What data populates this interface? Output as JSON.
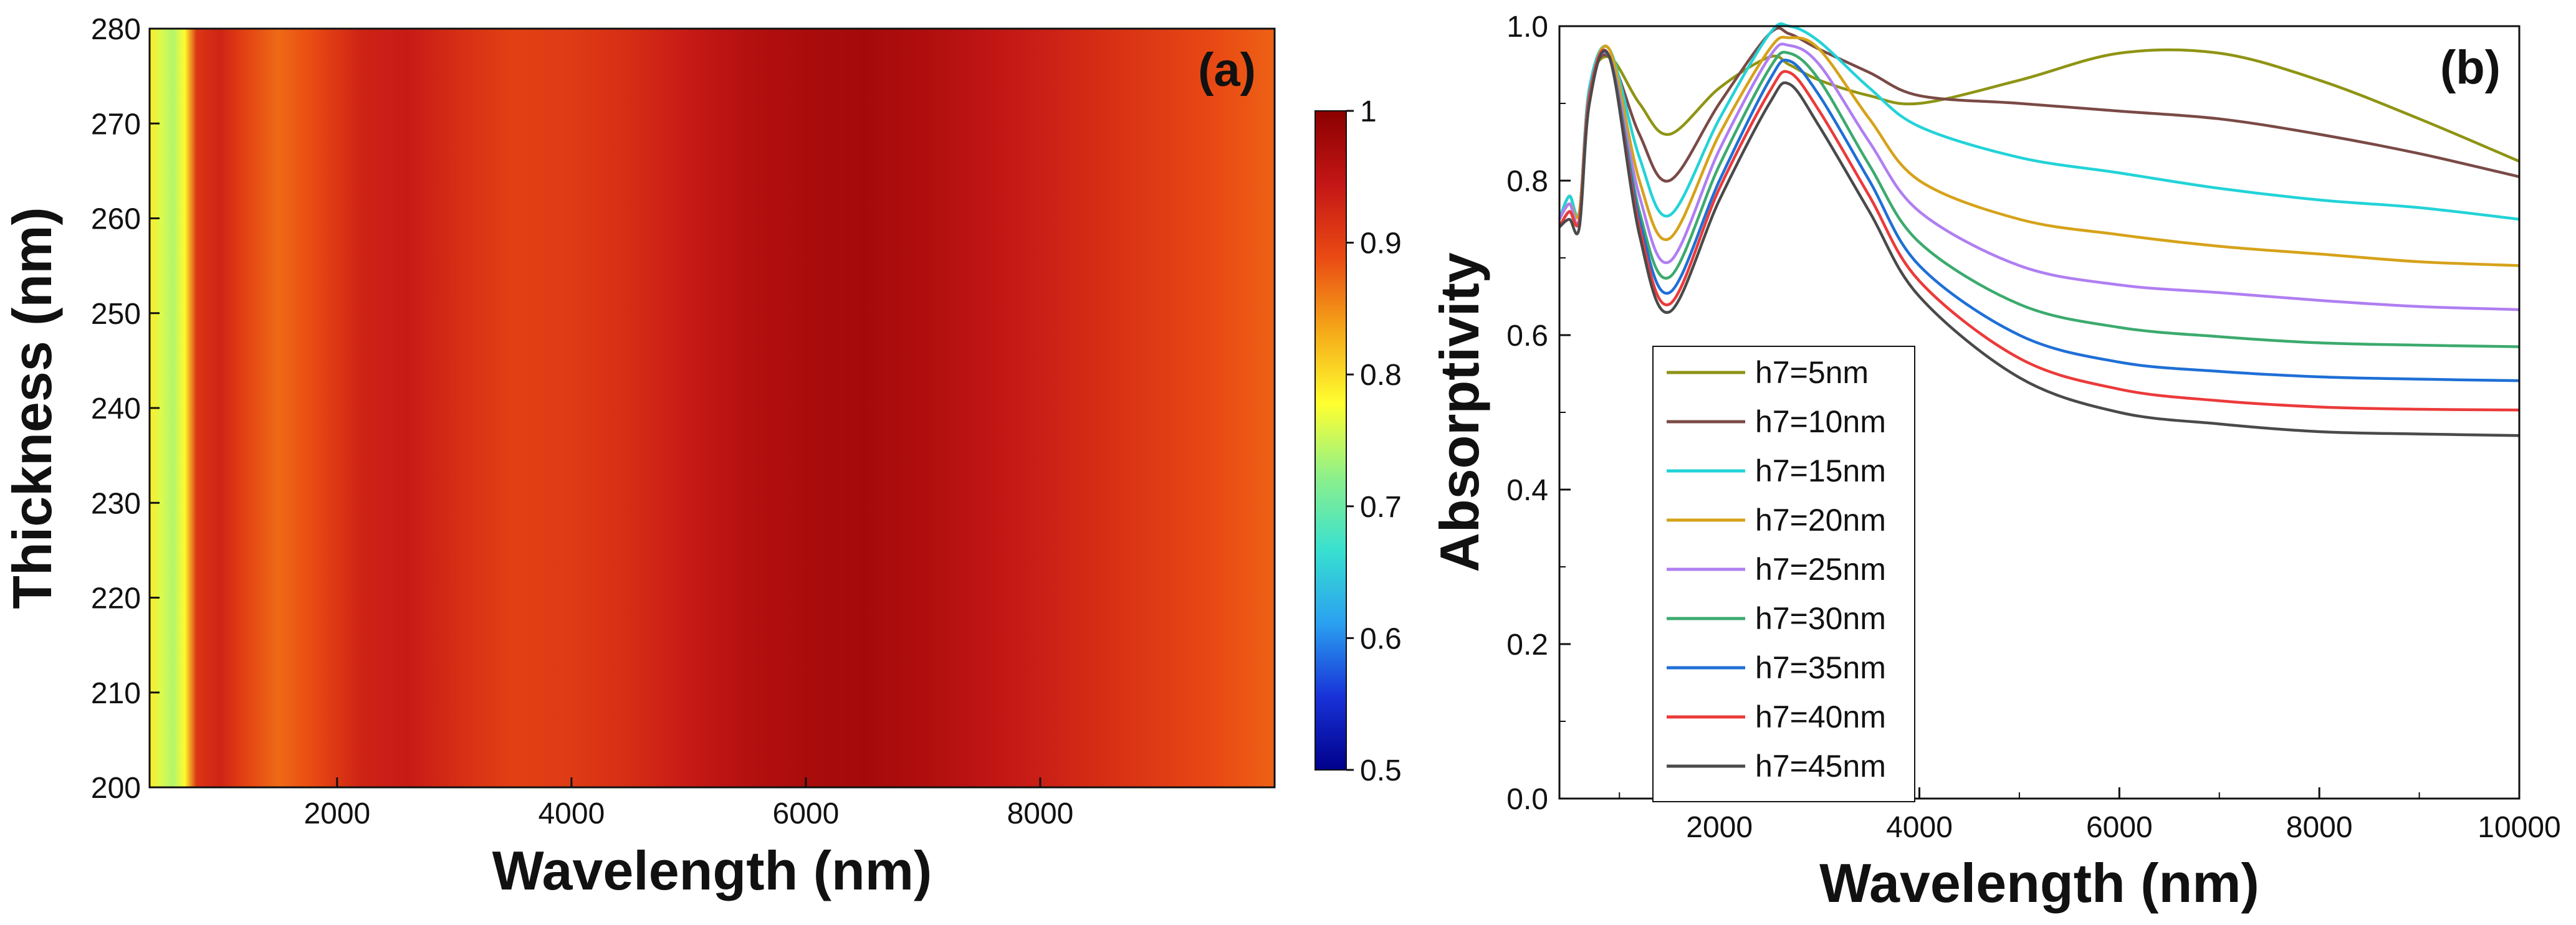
{
  "colors": {
    "colormap": [
      "#00008a",
      "#1832d8",
      "#2aa0f0",
      "#38e0d0",
      "#8df08a",
      "#ffff30",
      "#f5a818",
      "#ea4a14",
      "#c41616",
      "#8b0000"
    ],
    "series": [
      "#8f9414",
      "#7a4a46",
      "#22d3d8",
      "#d6a21a",
      "#b07ef2",
      "#3caa6e",
      "#1f6fd6",
      "#ec3a3a",
      "#4a4a4a"
    ]
  },
  "chart_data": [
    {
      "type": "heatmap",
      "panel_label": "(a)",
      "xlabel": "Wavelength (nm)",
      "ylabel": "Thickness (nm)",
      "xlim": [
        400,
        10000
      ],
      "ylim": [
        200,
        280
      ],
      "xticks": [
        "2000",
        "4000",
        "6000",
        "8000"
      ],
      "yticks": [
        "200",
        "210",
        "220",
        "230",
        "240",
        "250",
        "260",
        "270",
        "280"
      ],
      "colorbar": {
        "range": [
          0.5,
          1.0
        ],
        "ticks": [
          "0.5",
          "0.6",
          "0.7",
          "0.8",
          "0.9",
          "1"
        ]
      },
      "wavelength_nm": [
        400,
        500,
        600,
        700,
        800,
        1000,
        1200,
        1500,
        1800,
        2200,
        2600,
        3000,
        3500,
        4000,
        4500,
        5000,
        5500,
        6000,
        6500,
        7000,
        7500,
        8000,
        8500,
        9000,
        9500,
        10000
      ],
      "absorptivity": [
        0.79,
        0.76,
        0.74,
        0.78,
        0.91,
        0.93,
        0.9,
        0.87,
        0.89,
        0.93,
        0.94,
        0.92,
        0.9,
        0.905,
        0.92,
        0.94,
        0.96,
        0.97,
        0.975,
        0.965,
        0.95,
        0.935,
        0.92,
        0.905,
        0.89,
        0.875
      ]
    },
    {
      "type": "line",
      "panel_label": "(b)",
      "xlabel": "Wavelength (nm)",
      "ylabel": "Absorptivity",
      "xlim": [
        400,
        10000
      ],
      "ylim": [
        0,
        1.0
      ],
      "xticks": [
        "2000",
        "4000",
        "6000",
        "8000",
        "10000"
      ],
      "yticks": [
        "0.0",
        "0.2",
        "0.4",
        "0.6",
        "0.8",
        "1.0"
      ],
      "legend_position": "lower-left",
      "x": [
        400,
        500,
        600,
        700,
        900,
        1200,
        1500,
        2000,
        2500,
        2700,
        3000,
        3500,
        4000,
        5000,
        6000,
        7000,
        8000,
        9000,
        10000
      ],
      "series": [
        {
          "name": "h7=5nm",
          "values": [
            0.75,
            0.78,
            0.76,
            0.92,
            0.96,
            0.9,
            0.86,
            0.92,
            0.96,
            0.95,
            0.93,
            0.91,
            0.9,
            0.93,
            0.965,
            0.965,
            0.93,
            0.88,
            0.825
          ]
        },
        {
          "name": "h7=10nm",
          "values": [
            0.75,
            0.78,
            0.76,
            0.92,
            0.96,
            0.86,
            0.8,
            0.9,
            0.99,
            0.99,
            0.97,
            0.94,
            0.91,
            0.9,
            0.89,
            0.88,
            0.86,
            0.835,
            0.805
          ]
        },
        {
          "name": "h7=15nm",
          "values": [
            0.75,
            0.78,
            0.76,
            0.92,
            0.97,
            0.83,
            0.755,
            0.88,
            0.99,
            1.0,
            0.98,
            0.92,
            0.87,
            0.83,
            0.81,
            0.79,
            0.775,
            0.765,
            0.75
          ]
        },
        {
          "name": "h7=20nm",
          "values": [
            0.75,
            0.77,
            0.76,
            0.91,
            0.97,
            0.8,
            0.725,
            0.86,
            0.97,
            0.985,
            0.97,
            0.88,
            0.8,
            0.75,
            0.73,
            0.715,
            0.705,
            0.695,
            0.69
          ]
        },
        {
          "name": "h7=25nm",
          "values": [
            0.75,
            0.77,
            0.75,
            0.91,
            0.96,
            0.78,
            0.695,
            0.84,
            0.96,
            0.975,
            0.95,
            0.85,
            0.76,
            0.69,
            0.665,
            0.655,
            0.645,
            0.637,
            0.633
          ]
        },
        {
          "name": "h7=30nm",
          "values": [
            0.74,
            0.76,
            0.75,
            0.91,
            0.96,
            0.76,
            0.675,
            0.82,
            0.945,
            0.965,
            0.93,
            0.82,
            0.72,
            0.64,
            0.61,
            0.598,
            0.59,
            0.587,
            0.585
          ]
        },
        {
          "name": "h7=35nm",
          "values": [
            0.74,
            0.76,
            0.75,
            0.91,
            0.96,
            0.75,
            0.655,
            0.8,
            0.93,
            0.955,
            0.91,
            0.8,
            0.69,
            0.6,
            0.565,
            0.553,
            0.546,
            0.543,
            0.541
          ]
        },
        {
          "name": "h7=40nm",
          "values": [
            0.74,
            0.76,
            0.75,
            0.91,
            0.96,
            0.74,
            0.64,
            0.79,
            0.915,
            0.94,
            0.89,
            0.78,
            0.67,
            0.57,
            0.53,
            0.515,
            0.507,
            0.504,
            0.503
          ]
        },
        {
          "name": "h7=45nm",
          "values": [
            0.74,
            0.75,
            0.74,
            0.9,
            0.96,
            0.73,
            0.63,
            0.775,
            0.9,
            0.925,
            0.87,
            0.76,
            0.65,
            0.545,
            0.5,
            0.485,
            0.475,
            0.472,
            0.47
          ]
        }
      ]
    }
  ]
}
